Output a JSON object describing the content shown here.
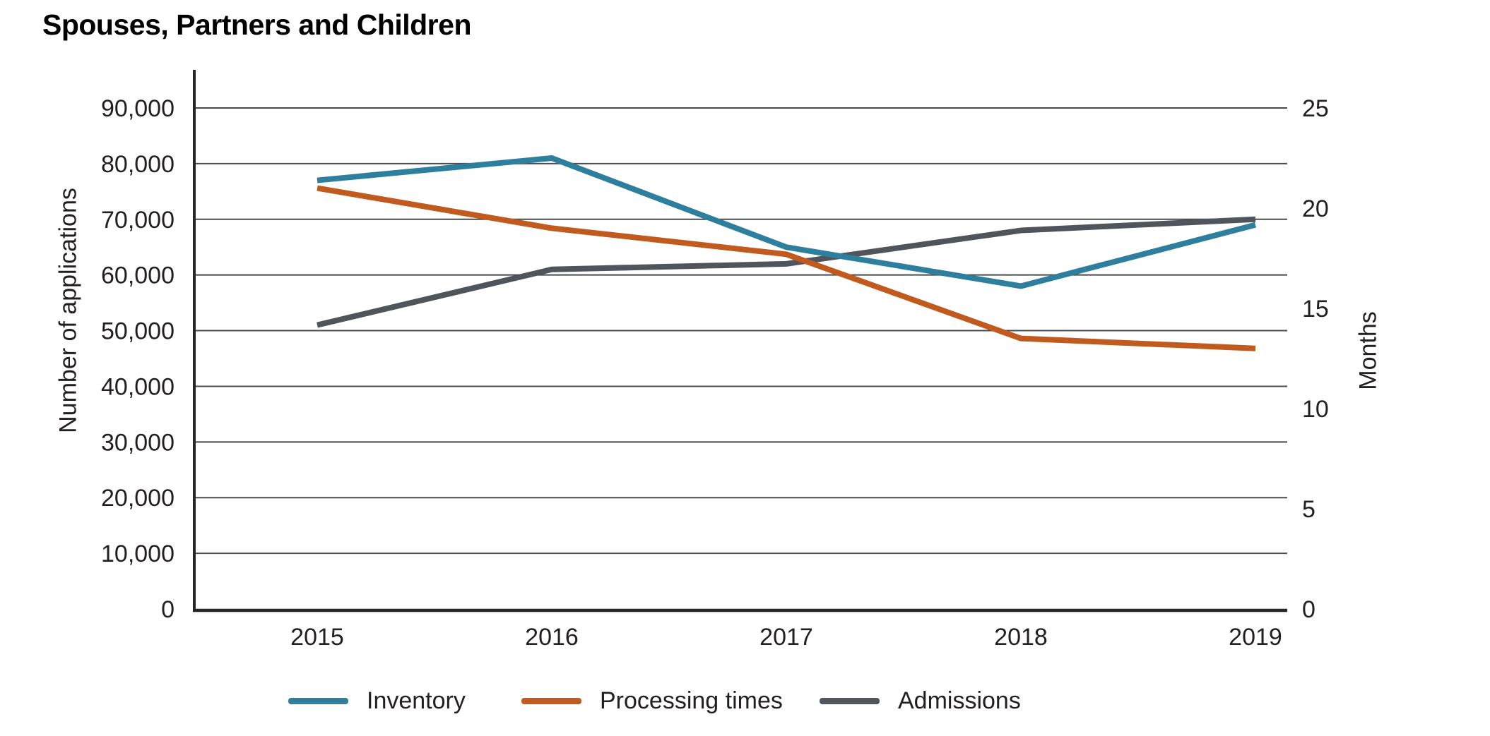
{
  "title": "Spouses, Partners and Children",
  "colors": {
    "inventory": "#2e7f9e",
    "processing_times": "#c05a1e",
    "admissions": "#50555c",
    "gridline": "#4a4b4d",
    "axis": "#2a2527",
    "text": "#231f20"
  },
  "chart_data": {
    "type": "line",
    "categories": [
      "2015",
      "2016",
      "2017",
      "2018",
      "2019"
    ],
    "series": [
      {
        "name": "Inventory",
        "axis": "left",
        "color_key": "inventory",
        "values": [
          77000,
          81000,
          65000,
          58000,
          69000
        ]
      },
      {
        "name": "Processing times",
        "axis": "right",
        "color_key": "processing_times",
        "values": [
          21,
          19,
          17.7,
          13.5,
          13
        ]
      },
      {
        "name": "Admissions",
        "axis": "left",
        "color_key": "admissions",
        "values": [
          51000,
          61000,
          62000,
          68000,
          70000
        ]
      }
    ],
    "left_axis": {
      "label": "Number of applications",
      "max": 90000,
      "ticks": [
        {
          "value": 0,
          "label": "0"
        },
        {
          "value": 10000,
          "label": "10,000"
        },
        {
          "value": 20000,
          "label": "20,000"
        },
        {
          "value": 30000,
          "label": "30,000"
        },
        {
          "value": 40000,
          "label": "40,000"
        },
        {
          "value": 50000,
          "label": "50,000"
        },
        {
          "value": 60000,
          "label": "60,000"
        },
        {
          "value": 70000,
          "label": "70,000"
        },
        {
          "value": 80000,
          "label": "80,000"
        },
        {
          "value": 90000,
          "label": "90,000"
        }
      ]
    },
    "right_axis": {
      "label": "Months",
      "max": 25,
      "ticks": [
        {
          "value": 0,
          "label": "0"
        },
        {
          "value": 5,
          "label": "5"
        },
        {
          "value": 10,
          "label": "10"
        },
        {
          "value": 15,
          "label": "15"
        },
        {
          "value": 20,
          "label": "20"
        },
        {
          "value": 25,
          "label": "25"
        }
      ]
    },
    "grid": true,
    "legend_position": "bottom"
  }
}
